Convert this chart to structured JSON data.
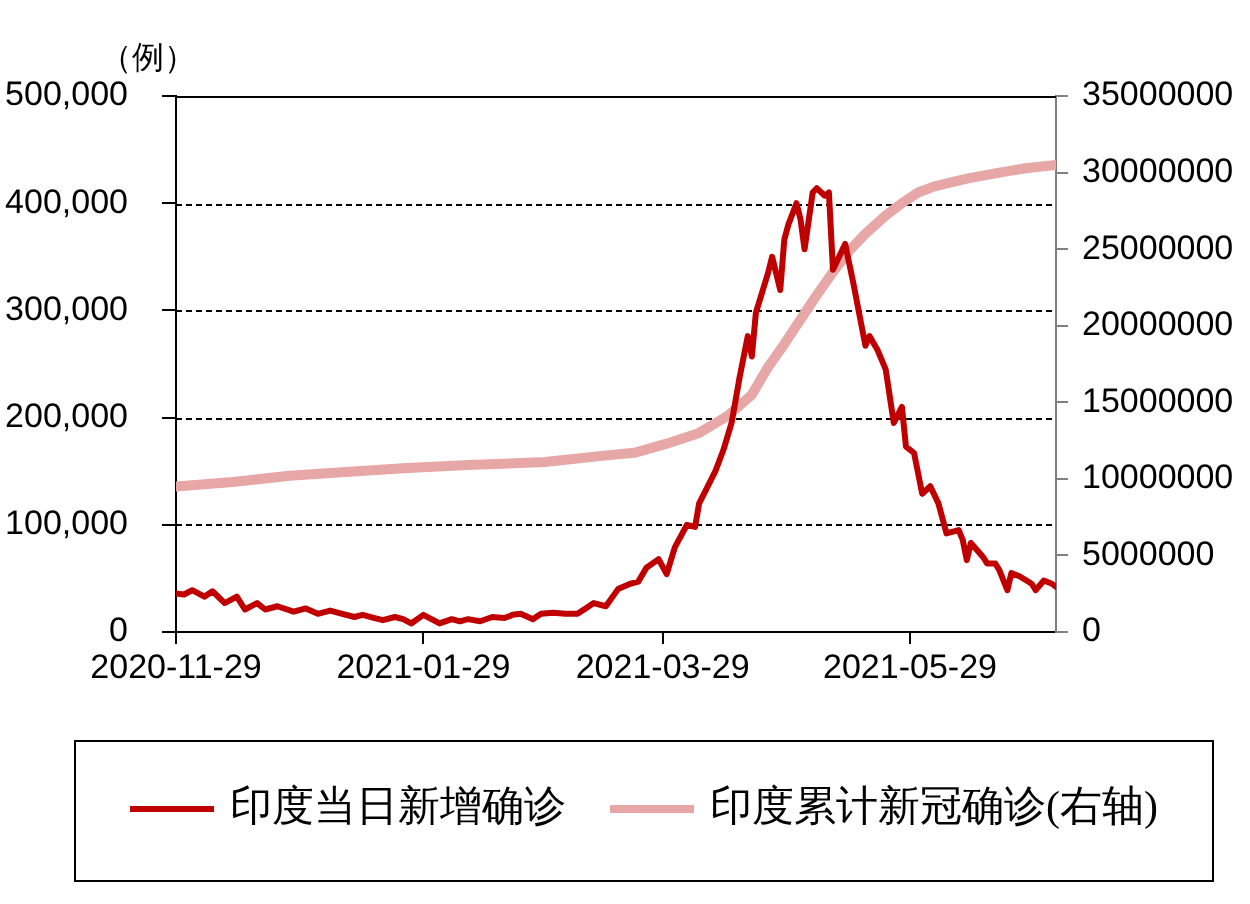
{
  "chart_data": {
    "type": "line",
    "ylabel": "（例）",
    "xlim": [
      "2020-11-29",
      "2021-07-04"
    ],
    "xticks": [
      "2020-11-29",
      "2021-01-29",
      "2021-03-29",
      "2021-05-29"
    ],
    "ylim": [
      0,
      500000
    ],
    "yticks": [
      0,
      {
        "value": 100000,
        "label": "100,000"
      },
      {
        "value": 200000,
        "label": "200,000"
      },
      {
        "value": 300000,
        "label": "300,000"
      },
      {
        "value": 400000,
        "label": "400,000"
      },
      {
        "value": 500000,
        "label": "500,000"
      }
    ],
    "y2lim": [
      0,
      35000000
    ],
    "y2ticks": [
      0,
      5000000,
      10000000,
      15000000,
      20000000,
      25000000,
      30000000,
      35000000
    ],
    "grid": "y",
    "legend": "bottom",
    "series": [
      {
        "name": "印度当日新增确诊",
        "color": "#c00000",
        "x": [
          "2020-11-29",
          "2020-12-01",
          "2020-12-03",
          "2020-12-06",
          "2020-12-08",
          "2020-12-11",
          "2020-12-14",
          "2020-12-16",
          "2020-12-19",
          "2020-12-21",
          "2020-12-24",
          "2020-12-28",
          "2020-12-31",
          "2021-01-03",
          "2021-01-06",
          "2021-01-09",
          "2021-01-12",
          "2021-01-14",
          "2021-01-17",
          "2021-01-19",
          "2021-01-22",
          "2021-01-24",
          "2021-01-26",
          "2021-01-29",
          "2021-01-31",
          "2021-02-02",
          "2021-02-05",
          "2021-02-07",
          "2021-02-09",
          "2021-02-12",
          "2021-02-15",
          "2021-02-18",
          "2021-02-20",
          "2021-02-22",
          "2021-02-25",
          "2021-02-27",
          "2021-03-02",
          "2021-03-05",
          "2021-03-08",
          "2021-03-10",
          "2021-03-12",
          "2021-03-15",
          "2021-03-18",
          "2021-03-21",
          "2021-03-23",
          "2021-03-25",
          "2021-03-28",
          "2021-03-30",
          "2021-04-01",
          "2021-04-04",
          "2021-04-06",
          "2021-04-07",
          "2021-04-09",
          "2021-04-11",
          "2021-04-12",
          "2021-04-13",
          "2021-04-15",
          "2021-04-17",
          "2021-04-19",
          "2021-04-20",
          "2021-04-21",
          "2021-04-24",
          "2021-04-25",
          "2021-04-27",
          "2021-04-28",
          "2021-04-29",
          "2021-05-01",
          "2021-05-02",
          "2021-05-03",
          "2021-05-05",
          "2021-05-06",
          "2021-05-08",
          "2021-05-09",
          "2021-05-10",
          "2021-05-13",
          "2021-05-15",
          "2021-05-18",
          "2021-05-19",
          "2021-05-21",
          "2021-05-23",
          "2021-05-25",
          "2021-05-27",
          "2021-05-28",
          "2021-05-30",
          "2021-06-01",
          "2021-06-03",
          "2021-06-05",
          "2021-06-07",
          "2021-06-10",
          "2021-06-11",
          "2021-06-12",
          "2021-06-13",
          "2021-06-16",
          "2021-06-17",
          "2021-06-19",
          "2021-06-20",
          "2021-06-22",
          "2021-06-23",
          "2021-06-25",
          "2021-06-28",
          "2021-06-29",
          "2021-07-01",
          "2021-07-03",
          "2021-07-04"
        ],
        "values": [
          36000,
          35000,
          39000,
          33000,
          38000,
          27000,
          33000,
          21000,
          27000,
          21000,
          24000,
          19000,
          22000,
          17000,
          20000,
          17000,
          14000,
          16000,
          13000,
          11000,
          14000,
          12000,
          8000,
          16000,
          12000,
          8000,
          12000,
          10000,
          12000,
          10000,
          14000,
          13000,
          16000,
          17000,
          12000,
          17000,
          18000,
          17000,
          17000,
          22000,
          27000,
          24000,
          40000,
          45000,
          47000,
          60000,
          68000,
          54000,
          79000,
          100000,
          98000,
          120000,
          135000,
          150000,
          160000,
          170000,
          195000,
          238000,
          276000,
          257000,
          298000,
          335000,
          350000,
          319000,
          366000,
          380000,
          400000,
          385000,
          357000,
          410000,
          414000,
          407000,
          410000,
          338000,
          362000,
          326000,
          267000,
          276000,
          263000,
          245000,
          195000,
          210000,
          173000,
          167000,
          129000,
          136000,
          120000,
          92000,
          95000,
          86000,
          67000,
          83000,
          70000,
          64000,
          64000,
          58000,
          39000,
          55000,
          52000,
          45000,
          39000,
          48000,
          45000,
          42000
        ]
      },
      {
        "name": "印度累计新冠确诊(右轴)",
        "color": "#e8a7a7",
        "axis": "y2",
        "x": [
          "2020-11-29",
          "2020-12-13",
          "2020-12-27",
          "2021-01-07",
          "2021-01-24",
          "2021-02-09",
          "2021-02-28",
          "2021-03-14",
          "2021-03-22",
          "2021-03-30",
          "2021-04-07",
          "2021-04-14",
          "2021-04-20",
          "2021-04-24",
          "2021-04-28",
          "2021-05-02",
          "2021-05-06",
          "2021-05-10",
          "2021-05-14",
          "2021-05-18",
          "2021-05-23",
          "2021-05-27",
          "2021-05-31",
          "2021-06-04",
          "2021-06-12",
          "2021-06-20",
          "2021-06-27",
          "2021-07-04"
        ],
        "values": [
          9500000,
          9800000,
          10200000,
          10400000,
          10700000,
          10900000,
          11100000,
          11500000,
          11700000,
          12300000,
          13000000,
          14100000,
          15500000,
          17300000,
          18800000,
          20400000,
          22000000,
          23500000,
          24900000,
          26000000,
          27200000,
          28000000,
          28700000,
          29100000,
          29600000,
          30000000,
          30300000,
          30500000
        ]
      }
    ]
  }
}
